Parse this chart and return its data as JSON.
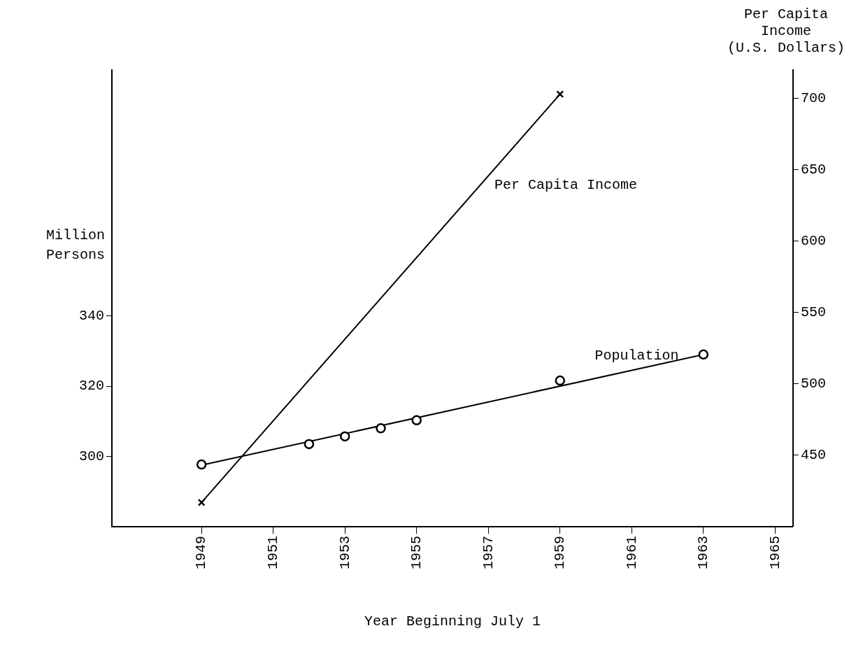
{
  "chart_data": {
    "type": "line",
    "xlabel": "Year Beginning July 1",
    "ylabel": "Million Persons",
    "y2label": "Per Capita Income (U.S. Dollars)",
    "xlim": [
      1946.5,
      1965.5
    ],
    "xticks": [
      1949,
      1951,
      1953,
      1955,
      1957,
      1959,
      1961,
      1963,
      1965
    ],
    "ylim": [
      280,
      410
    ],
    "yticks": [
      300,
      320,
      340
    ],
    "y2lim": [
      400,
      720
    ],
    "y2ticks": [
      450,
      500,
      550,
      600,
      650,
      700
    ],
    "grid": false,
    "legend": false,
    "series": [
      {
        "name": "Per Capita Income",
        "type": "line",
        "axis": "y2",
        "x": [
          1949,
          1959
        ],
        "values": [
          417,
          703
        ],
        "color": "#000000",
        "marker": "cross"
      },
      {
        "name": "Population",
        "type": "scatter",
        "x": [
          1949,
          1952,
          1953,
          1954,
          1955,
          1959,
          1963
        ],
        "values": [
          297.7,
          303.5,
          305.7,
          308,
          310.3,
          321.6,
          329
        ],
        "color": "#000000",
        "marker": "circle"
      },
      {
        "type": "line",
        "x": [
          1949,
          1963
        ],
        "values": [
          297.5,
          329
        ],
        "color": "#000000",
        "marker": "none"
      }
    ]
  }
}
